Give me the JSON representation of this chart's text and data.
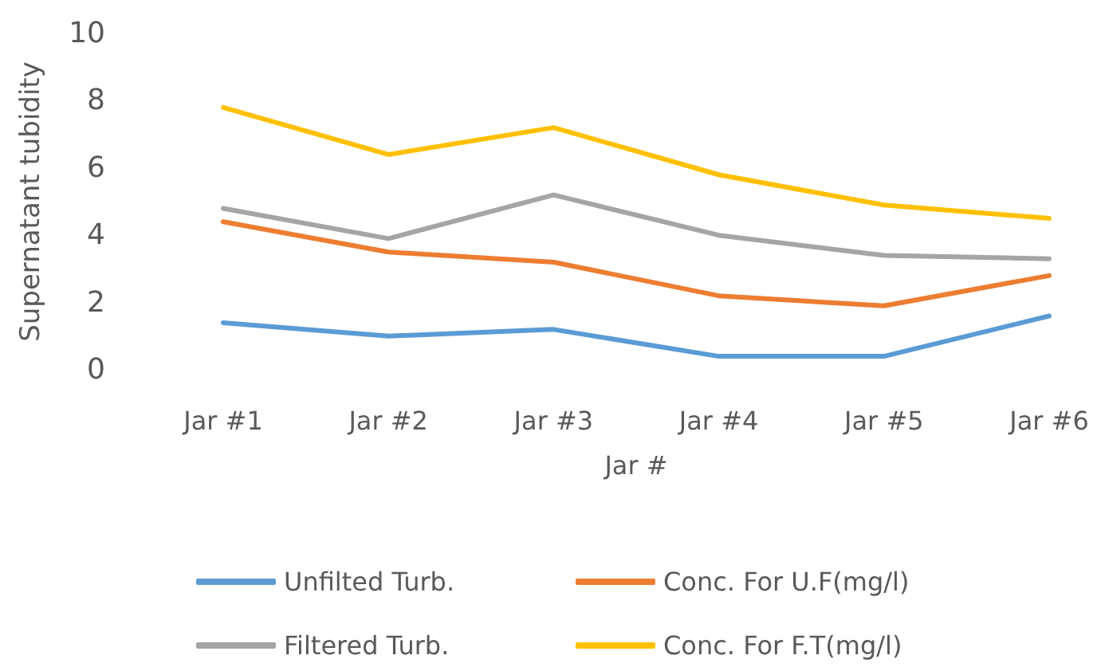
{
  "chart_data": {
    "type": "line",
    "xlabel": "Jar #",
    "ylabel": "Supernatant tubidity",
    "categories": [
      "Jar #1",
      "Jar #2",
      "Jar #3",
      "Jar #4",
      "Jar #5",
      "Jar #6"
    ],
    "series": [
      {
        "name": "Unfilted Turb.",
        "color": "#5b9bd5",
        "values": [
          1.4,
          1.0,
          1.2,
          0.4,
          0.4,
          1.6
        ]
      },
      {
        "name": "Conc. For U.F(mg/l)",
        "color": "#ed7d31",
        "values": [
          4.4,
          3.5,
          3.2,
          2.2,
          1.9,
          2.8
        ]
      },
      {
        "name": "Filtered Turb.",
        "color": "#a5a5a5",
        "values": [
          4.8,
          3.9,
          5.2,
          4.0,
          3.4,
          3.3
        ]
      },
      {
        "name": "Conc. For F.T(mg/l)",
        "color": "#ffc000",
        "values": [
          7.8,
          6.4,
          7.2,
          5.8,
          4.9,
          4.5
        ]
      }
    ],
    "ylim": [
      0,
      10
    ],
    "yticks": [
      0,
      2,
      4,
      6,
      8,
      10
    ],
    "grid": false,
    "legend": "bottom",
    "marker": "none"
  }
}
